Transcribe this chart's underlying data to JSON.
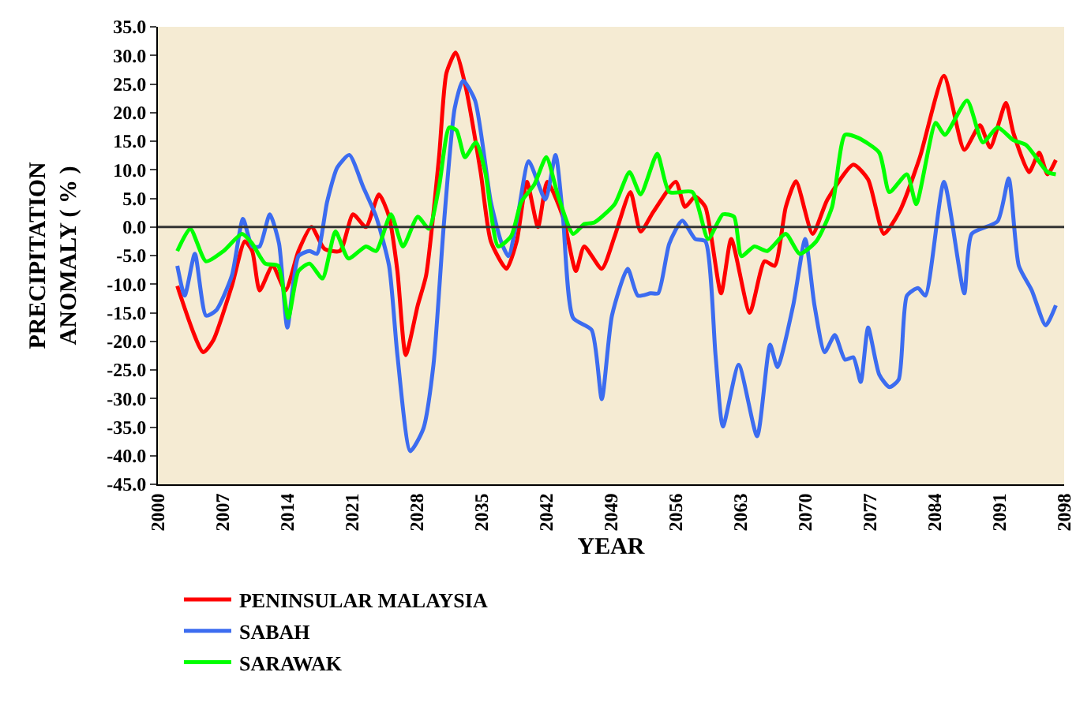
{
  "chart_data": {
    "type": "line",
    "xlabel": "YEAR",
    "ylabel": "PRECIPITATION\nANOMALY ( % )",
    "legend": "bottom left",
    "grid": false,
    "ref_lines": [
      {
        "axis": "y",
        "value": 0,
        "color": "#333333"
      }
    ],
    "marker": "none",
    "line_style": "solid",
    "xlim": [
      2000,
      2098
    ],
    "xticks": [
      2000,
      2007,
      2014,
      2021,
      2028,
      2035,
      2042,
      2049,
      2056,
      2063,
      2070,
      2077,
      2084,
      2091,
      2098
    ],
    "ylim": [
      -45,
      35
    ],
    "yticks": [
      {
        "value": 35,
        "label": "35.0"
      },
      {
        "value": 30,
        "label": "30.0"
      },
      {
        "value": 25,
        "label": "25.0"
      },
      {
        "value": 20,
        "label": "20.0"
      },
      {
        "value": 15,
        "label": "15.0"
      },
      {
        "value": 10,
        "label": "10.0"
      },
      {
        "value": 5,
        "label": "5.0"
      },
      {
        "value": 0,
        "label": "0.0"
      },
      {
        "value": -5,
        "label": "-5.0"
      },
      {
        "value": -10,
        "label": "-10.0"
      },
      {
        "value": -15,
        "label": "-15.0"
      },
      {
        "value": -20,
        "label": "-20.0"
      },
      {
        "value": -25,
        "label": "-25.0"
      },
      {
        "value": -30,
        "label": "-30.0"
      },
      {
        "value": -35,
        "label": "-35.0"
      },
      {
        "value": -40,
        "label": "-40.0"
      },
      {
        "value": -45,
        "label": "-45.0"
      }
    ],
    "series": [
      {
        "name": "PENINSULAR MALAYSIA",
        "color": "#ff0000",
        "x": [
          2002.1,
          2004.9,
          2006.0,
          2008.0,
          2009.4,
          2010.2,
          2011.0,
          2012.4,
          2013.8,
          2015.2,
          2016.6,
          2018.0,
          2019.7,
          2021.1,
          2022.5,
          2023.9,
          2025.0,
          2025.9,
          2026.8,
          2028.1,
          2029.0,
          2030.4,
          2031.2,
          2032.2,
          2033.2,
          2034.9,
          2036.0,
          2037.7,
          2038.8,
          2039.9,
          2041.1,
          2042.1,
          2043.8,
          2045.2,
          2046.1,
          2048.0,
          2049.4,
          2051.1,
          2052.2,
          2053.6,
          2056.0,
          2057.0,
          2058.1,
          2059.2,
          2060.9,
          2062.0,
          2064.0,
          2065.6,
          2066.7,
          2067.9,
          2069.0,
          2070.8,
          2072.4,
          2075.2,
          2076.8,
          2078.5,
          2080.2,
          2082.4,
          2085.0,
          2087.2,
          2088.9,
          2090.0,
          2091.7,
          2092.5,
          2094.2,
          2095.3,
          2096.2,
          2097.1
        ],
        "values": [
          -10.3,
          -21.9,
          -19.8,
          -10.3,
          -2.5,
          -4.2,
          -11.1,
          -6.8,
          -11.1,
          -4.2,
          0,
          -3.8,
          -4.2,
          2.2,
          0,
          5.7,
          1.8,
          -7.7,
          -22.4,
          -13.7,
          -8.5,
          12.2,
          26.9,
          30.5,
          25.1,
          9.6,
          -2.5,
          -7.3,
          -2.5,
          7.9,
          0,
          7.9,
          1.8,
          -7.7,
          -3.4,
          -7.3,
          -1.6,
          6.1,
          -0.8,
          2.7,
          7.9,
          3.5,
          5.3,
          3.5,
          -11.6,
          -2.1,
          -15.0,
          -6.0,
          -6.8,
          3.5,
          8.0,
          -1.2,
          4.8,
          10.9,
          8.3,
          -1.2,
          2.7,
          12.2,
          26.4,
          13.5,
          17.8,
          13.9,
          21.7,
          16.5,
          9.6,
          13.0,
          9.2,
          11.7
        ]
      },
      {
        "name": "SABAH",
        "color": "#3c6cf0",
        "x": [
          2002.1,
          2002.9,
          2004.0,
          2005.2,
          2006.3,
          2008.0,
          2009.2,
          2010.2,
          2011.0,
          2012.1,
          2013.1,
          2014.0,
          2015.2,
          2016.4,
          2017.2,
          2018.3,
          2019.4,
          2020.7,
          2022.2,
          2023.6,
          2025.0,
          2025.9,
          2027.3,
          2028.7,
          2029.8,
          2030.9,
          2032.1,
          2033.0,
          2034.3,
          2036.0,
          2037.1,
          2037.9,
          2038.9,
          2040.1,
          2041.9,
          2043.0,
          2043.8,
          2044.9,
          2046.9,
          2048.0,
          2049.1,
          2050.8,
          2051.9,
          2053.3,
          2054.1,
          2055.3,
          2056.7,
          2058.1,
          2059.2,
          2060.3,
          2061.1,
          2062.8,
          2064.8,
          2066.2,
          2067.0,
          2068.7,
          2070.0,
          2071.0,
          2072.1,
          2073.2,
          2074.3,
          2075.2,
          2076.0,
          2076.8,
          2078.0,
          2079.1,
          2080.1,
          2081.0,
          2082.2,
          2083.0,
          2085.0,
          2087.2,
          2088.0,
          2090.8,
          2092.0,
          2093.1,
          2094.5,
          2096.0,
          2097.1
        ],
        "values": [
          -6.8,
          -12.0,
          -4.7,
          -15.5,
          -14.6,
          -8.5,
          1.4,
          -3.4,
          -3.4,
          2.2,
          -2.9,
          -17.6,
          -5.1,
          -4.2,
          -4.7,
          4.4,
          10.4,
          12.6,
          7.0,
          1.8,
          -6.8,
          -22.4,
          -39.2,
          -35.3,
          -24.1,
          0,
          20.8,
          25.6,
          22.1,
          4.4,
          -2.5,
          -5.1,
          1.8,
          11.5,
          4.8,
          12.6,
          1.8,
          -15.9,
          -18.0,
          -30.1,
          -15.5,
          -7.3,
          -12.0,
          -11.6,
          -11.6,
          -2.9,
          1.1,
          -2.1,
          -2.5,
          -22.4,
          -34.9,
          -24.1,
          -36.6,
          -20.6,
          -24.5,
          -13.7,
          -2.1,
          -13.7,
          -21.9,
          -18.9,
          -23.2,
          -22.8,
          -27.1,
          -17.6,
          -25.8,
          -28.0,
          -26.7,
          -12.0,
          -10.7,
          -12.0,
          7.9,
          -11.6,
          -1.2,
          1.0,
          8.5,
          -6.8,
          -11.1,
          -17.2,
          -13.7
        ]
      },
      {
        "name": "SARAWAK",
        "color": "#00ff00",
        "x": [
          2002.1,
          2003.5,
          2005.2,
          2007.1,
          2009.1,
          2010.2,
          2011.6,
          2013.0,
          2014.1,
          2015.2,
          2016.4,
          2017.8,
          2019.2,
          2020.6,
          2022.5,
          2023.6,
          2025.2,
          2026.5,
          2028.1,
          2029.3,
          2030.4,
          2031.5,
          2032.3,
          2033.2,
          2034.4,
          2035.4,
          2036.8,
          2038.2,
          2039.3,
          2040.7,
          2042.0,
          2043.3,
          2044.9,
          2046.1,
          2047.2,
          2049.4,
          2051.0,
          2052.2,
          2054.0,
          2055.3,
          2057.8,
          2059.5,
          2061.1,
          2062.3,
          2063.1,
          2064.5,
          2065.9,
          2067.9,
          2069.4,
          2071.2,
          2072.9,
          2074.3,
          2075.7,
          2078.0,
          2079.1,
          2081.0,
          2082.0,
          2084.1,
          2085.1,
          2087.5,
          2089.2,
          2090.8,
          2092.5,
          2093.9,
          2096.2,
          2097.1
        ],
        "values": [
          -4.2,
          -0.3,
          -6.0,
          -4.2,
          -1.2,
          -2.9,
          -6.4,
          -6.8,
          -15.9,
          -7.7,
          -6.4,
          -9.0,
          -0.8,
          -5.5,
          -3.4,
          -4.2,
          2.2,
          -3.4,
          1.8,
          -0.3,
          7.0,
          17.4,
          16.9,
          12.2,
          14.8,
          9.6,
          -3.4,
          -1.6,
          4.4,
          7.4,
          12.2,
          5.3,
          -1.2,
          0.5,
          0.8,
          4.0,
          9.6,
          5.7,
          12.8,
          6.1,
          6.1,
          -2.1,
          2.2,
          1.8,
          -5.1,
          -3.4,
          -4.2,
          -1.2,
          -4.7,
          -2.5,
          3.5,
          16.1,
          15.6,
          13.0,
          6.1,
          9.2,
          4.0,
          18.2,
          16.1,
          22.1,
          14.8,
          17.4,
          15.2,
          14.3,
          9.6,
          9.2
        ]
      }
    ]
  }
}
